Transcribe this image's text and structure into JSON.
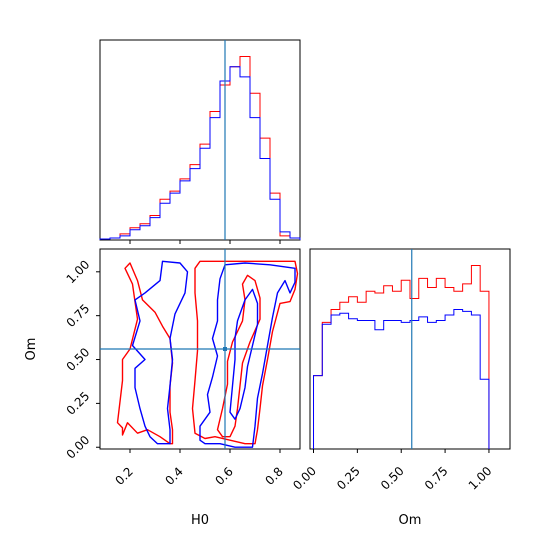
{
  "chart_data": {
    "type": "corner",
    "colors": {
      "series_a": "#ff0000",
      "series_b": "#0000ff",
      "truth": "#1f77b4"
    },
    "parameters": [
      "H0",
      "Om"
    ],
    "truth": {
      "H0": 0.58,
      "Om": 0.56
    },
    "grid": false,
    "panels": [
      {
        "id": "hist-h0",
        "type": "histogram",
        "xlabel": "",
        "ylabel": "",
        "xlim": [
          0.08,
          0.88
        ],
        "bin_edges": [
          0.08,
          0.12,
          0.16,
          0.2,
          0.24,
          0.28,
          0.32,
          0.36,
          0.4,
          0.44,
          0.48,
          0.52,
          0.56,
          0.6,
          0.64,
          0.68,
          0.72,
          0.76,
          0.8,
          0.84,
          0.88
        ],
        "series": [
          {
            "color": "red",
            "values": [
              0.005,
              0.01,
              0.03,
              0.06,
              0.08,
              0.12,
              0.2,
              0.24,
              0.3,
              0.37,
              0.47,
              0.63,
              0.76,
              0.85,
              0.9,
              0.72,
              0.5,
              0.23,
              0.02,
              0.01
            ]
          },
          {
            "color": "blue",
            "values": [
              0.005,
              0.01,
              0.02,
              0.05,
              0.07,
              0.11,
              0.18,
              0.23,
              0.29,
              0.35,
              0.45,
              0.6,
              0.78,
              0.85,
              0.8,
              0.6,
              0.4,
              0.2,
              0.04,
              0.01
            ]
          }
        ],
        "truth_x": 0.58
      },
      {
        "id": "contour-h0-om",
        "type": "contour",
        "xlabel": "H0",
        "ylabel": "Om",
        "xlim": [
          0.08,
          0.88
        ],
        "ylim": [
          -0.01,
          1.13
        ],
        "xticks": [
          "0.2",
          "0.4",
          "0.6",
          "0.8"
        ],
        "yticks": [
          "0.00",
          "0.25",
          "0.50",
          "0.75",
          "1.00"
        ],
        "series": [
          {
            "color": "red",
            "contours": [
              [
                [
                  0.19,
                  0.14
                ],
                [
                  0.17,
                  0.07
                ],
                [
                  0.17,
                  0.11
                ],
                [
                  0.15,
                  0.14
                ],
                [
                  0.17,
                  0.38
                ],
                [
                  0.17,
                  0.5
                ],
                [
                  0.2,
                  0.56
                ],
                [
                  0.23,
                  0.73
                ],
                [
                  0.21,
                  0.93
                ],
                [
                  0.18,
                  1.02
                ],
                [
                  0.2,
                  1.05
                ],
                [
                  0.23,
                  0.95
                ],
                [
                  0.25,
                  0.84
                ],
                [
                  0.3,
                  0.77
                ],
                [
                  0.33,
                  0.69
                ],
                [
                  0.36,
                  0.62
                ],
                [
                  0.37,
                  0.48
                ],
                [
                  0.36,
                  0.35
                ],
                [
                  0.36,
                  0.2
                ],
                [
                  0.37,
                  0.1
                ],
                [
                  0.37,
                  0.02
                ],
                [
                  0.36,
                  0.02
                ],
                [
                  0.32,
                  0.06
                ],
                [
                  0.27,
                  0.1
                ],
                [
                  0.23,
                  0.08
                ],
                [
                  0.19,
                  0.14
                ]
              ],
              [
                [
                  0.46,
                  0.08
                ],
                [
                  0.45,
                  0.22
                ],
                [
                  0.46,
                  0.38
                ],
                [
                  0.47,
                  0.55
                ],
                [
                  0.47,
                  0.72
                ],
                [
                  0.46,
                  0.88
                ],
                [
                  0.46,
                  1.02
                ],
                [
                  0.48,
                  1.06
                ],
                [
                  0.6,
                  1.06
                ],
                [
                  0.7,
                  1.06
                ],
                [
                  0.8,
                  1.06
                ],
                [
                  0.86,
                  1.06
                ],
                [
                  0.87,
                  0.99
                ],
                [
                  0.86,
                  0.9
                ],
                [
                  0.84,
                  0.83
                ],
                [
                  0.8,
                  0.82
                ],
                [
                  0.77,
                  0.66
                ],
                [
                  0.75,
                  0.5
                ],
                [
                  0.73,
                  0.35
                ],
                [
                  0.72,
                  0.22
                ],
                [
                  0.71,
                  0.1
                ],
                [
                  0.7,
                  0.02
                ],
                [
                  0.66,
                  0.02
                ],
                [
                  0.6,
                  0.04
                ],
                [
                  0.54,
                  0.06
                ],
                [
                  0.5,
                  0.05
                ],
                [
                  0.46,
                  0.08
                ]
              ],
              [
                [
                  0.55,
                  0.1
                ],
                [
                  0.57,
                  0.22
                ],
                [
                  0.59,
                  0.36
                ],
                [
                  0.59,
                  0.49
                ],
                [
                  0.61,
                  0.6
                ],
                [
                  0.65,
                  0.72
                ],
                [
                  0.66,
                  0.84
                ],
                [
                  0.65,
                  0.93
                ],
                [
                  0.67,
                  0.98
                ],
                [
                  0.7,
                  0.95
                ],
                [
                  0.72,
                  0.85
                ],
                [
                  0.72,
                  0.73
                ],
                [
                  0.68,
                  0.6
                ],
                [
                  0.65,
                  0.48
                ],
                [
                  0.64,
                  0.35
                ],
                [
                  0.63,
                  0.22
                ],
                [
                  0.62,
                  0.12
                ],
                [
                  0.6,
                  0.06
                ],
                [
                  0.57,
                  0.06
                ],
                [
                  0.55,
                  0.1
                ]
              ]
            ]
          },
          {
            "color": "blue",
            "contours": [
              [
                [
                  0.22,
                  0.34
                ],
                [
                  0.22,
                  0.45
                ],
                [
                  0.26,
                  0.5
                ],
                [
                  0.21,
                  0.58
                ],
                [
                  0.24,
                  0.72
                ],
                [
                  0.22,
                  0.84
                ],
                [
                  0.26,
                  0.88
                ],
                [
                  0.32,
                  0.95
                ],
                [
                  0.33,
                  1.06
                ],
                [
                  0.4,
                  1.05
                ],
                [
                  0.43,
                  1.0
                ],
                [
                  0.42,
                  0.88
                ],
                [
                  0.38,
                  0.76
                ],
                [
                  0.36,
                  0.62
                ],
                [
                  0.37,
                  0.5
                ],
                [
                  0.36,
                  0.35
                ],
                [
                  0.35,
                  0.22
                ],
                [
                  0.36,
                  0.1
                ],
                [
                  0.36,
                  0.02
                ],
                [
                  0.31,
                  0.02
                ],
                [
                  0.28,
                  0.06
                ],
                [
                  0.26,
                  0.12
                ],
                [
                  0.24,
                  0.22
                ],
                [
                  0.22,
                  0.34
                ]
              ],
              [
                [
                  0.48,
                  0.04
                ],
                [
                  0.48,
                  0.12
                ],
                [
                  0.52,
                  0.2
                ],
                [
                  0.51,
                  0.3
                ],
                [
                  0.53,
                  0.4
                ],
                [
                  0.55,
                  0.52
                ],
                [
                  0.53,
                  0.62
                ],
                [
                  0.55,
                  0.72
                ],
                [
                  0.55,
                  0.84
                ],
                [
                  0.56,
                  0.96
                ],
                [
                  0.58,
                  1.04
                ],
                [
                  0.66,
                  1.05
                ],
                [
                  0.76,
                  1.04
                ],
                [
                  0.86,
                  1.02
                ],
                [
                  0.86,
                  0.94
                ],
                [
                  0.84,
                  0.88
                ],
                [
                  0.82,
                  0.95
                ],
                [
                  0.79,
                  0.88
                ],
                [
                  0.77,
                  0.74
                ],
                [
                  0.75,
                  0.58
                ],
                [
                  0.73,
                  0.42
                ],
                [
                  0.71,
                  0.28
                ],
                [
                  0.7,
                  0.12
                ],
                [
                  0.69,
                  0.0
                ],
                [
                  0.62,
                  0.0
                ],
                [
                  0.56,
                  0.02
                ],
                [
                  0.5,
                  0.02
                ],
                [
                  0.48,
                  0.04
                ]
              ],
              [
                [
                  0.6,
                  0.2
                ],
                [
                  0.61,
                  0.35
                ],
                [
                  0.62,
                  0.5
                ],
                [
                  0.62,
                  0.62
                ],
                [
                  0.63,
                  0.72
                ],
                [
                  0.66,
                  0.84
                ],
                [
                  0.69,
                  0.9
                ],
                [
                  0.71,
                  0.82
                ],
                [
                  0.71,
                  0.7
                ],
                [
                  0.69,
                  0.58
                ],
                [
                  0.67,
                  0.46
                ],
                [
                  0.66,
                  0.34
                ],
                [
                  0.64,
                  0.22
                ],
                [
                  0.62,
                  0.16
                ],
                [
                  0.6,
                  0.2
                ]
              ]
            ]
          }
        ],
        "truth_x": 0.58,
        "truth_y": 0.56
      },
      {
        "id": "hist-om",
        "type": "histogram",
        "xlabel": "Om",
        "ylabel": "",
        "xlim": [
          -0.02,
          1.12
        ],
        "xticks": [
          "0.00",
          "0.25",
          "0.50",
          "0.75",
          "1.00"
        ],
        "bin_edges": [
          0.0,
          0.05,
          0.1,
          0.15,
          0.2,
          0.25,
          0.3,
          0.35,
          0.4,
          0.45,
          0.5,
          0.55,
          0.6,
          0.65,
          0.7,
          0.75,
          0.8,
          0.85,
          0.9,
          0.95,
          1.0
        ],
        "series": [
          {
            "color": "red",
            "values": [
              0.4,
              0.69,
              0.76,
              0.8,
              0.83,
              0.8,
              0.86,
              0.85,
              0.89,
              0.86,
              0.92,
              0.82,
              0.93,
              0.88,
              0.93,
              0.88,
              0.86,
              0.9,
              1.0,
              0.86
            ]
          },
          {
            "color": "blue",
            "values": [
              0.4,
              0.68,
              0.73,
              0.74,
              0.71,
              0.7,
              0.7,
              0.65,
              0.7,
              0.7,
              0.69,
              0.7,
              0.72,
              0.69,
              0.7,
              0.73,
              0.76,
              0.75,
              0.73,
              0.38
            ]
          }
        ],
        "truth_x": 0.56
      }
    ]
  }
}
